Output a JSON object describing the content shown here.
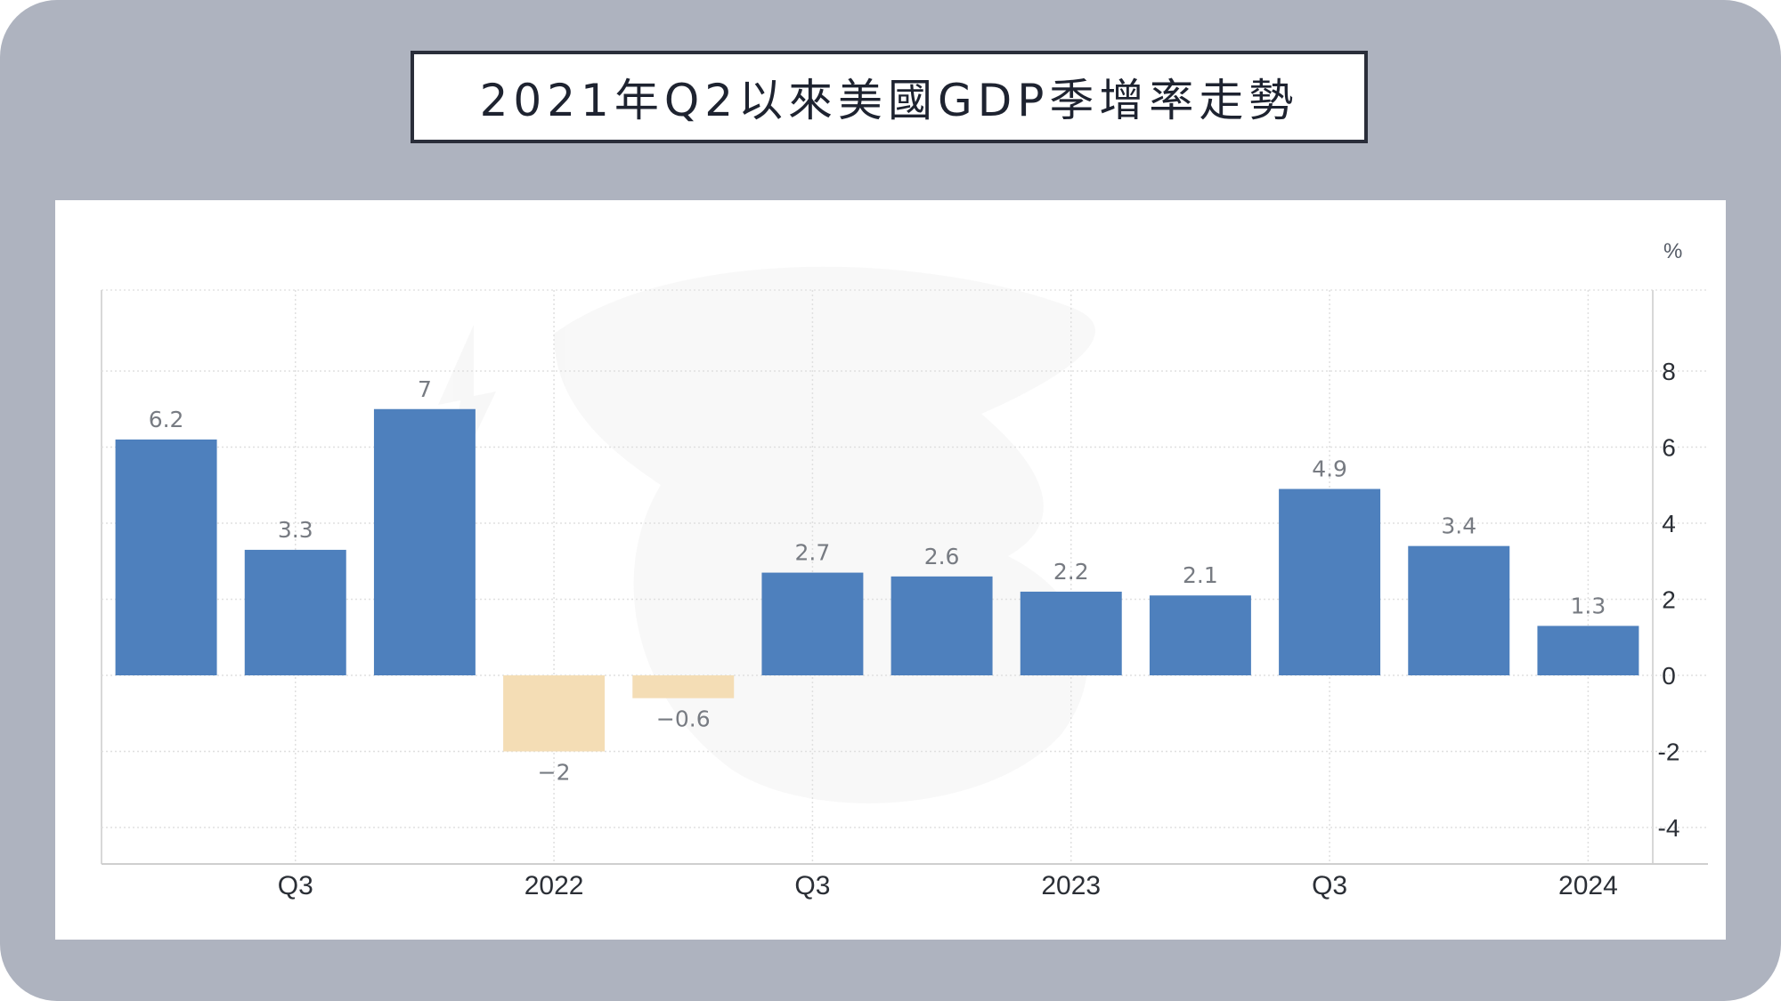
{
  "title": "2021年Q2以來美國GDP季增率走勢",
  "chart_data": {
    "type": "bar",
    "unit_label": "%",
    "categories": [
      "2021Q2",
      "2021Q3",
      "2021Q4",
      "2022Q1",
      "2022Q2",
      "2022Q3",
      "2022Q4",
      "2023Q1",
      "2023Q2",
      "2023Q3",
      "2023Q4",
      "2024Q1"
    ],
    "values": [
      6.2,
      3.3,
      7,
      -2,
      -0.6,
      2.7,
      2.6,
      2.2,
      2.1,
      4.9,
      3.4,
      1.3
    ],
    "data_labels": [
      "6.2",
      "3.3",
      "7",
      "−2",
      "−0.6",
      "2.7",
      "2.6",
      "2.2",
      "2.1",
      "4.9",
      "3.4",
      "1.3"
    ],
    "x_tick_labels": [
      {
        "label": "Q3",
        "index": 1
      },
      {
        "label": "2022",
        "index": 3
      },
      {
        "label": "Q3",
        "index": 5
      },
      {
        "label": "2023",
        "index": 7
      },
      {
        "label": "Q3",
        "index": 9
      },
      {
        "label": "2024",
        "index": 11
      }
    ],
    "y_ticks": [
      8,
      6,
      4,
      2,
      0,
      -2,
      -4
    ],
    "y_tick_labels": [
      "8",
      "6",
      "4",
      "2",
      "0",
      "-2",
      "-4"
    ],
    "ylim": [
      -5,
      10
    ],
    "positive_color": "#4e80bd",
    "negative_color": "#f4ddb5",
    "grid": true,
    "y_axis_position": "right"
  }
}
